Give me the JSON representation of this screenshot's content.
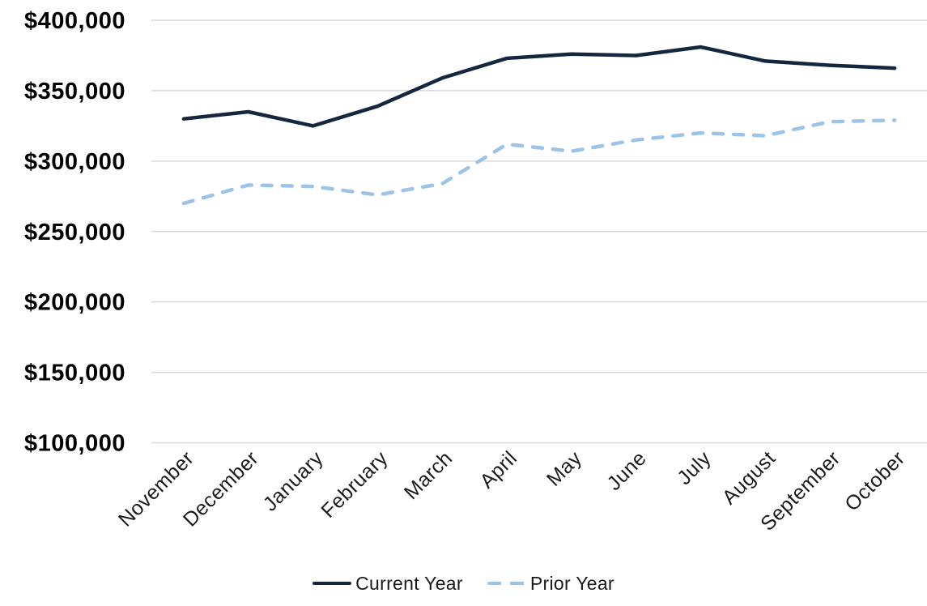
{
  "chart_data": {
    "type": "line",
    "title": "",
    "xlabel": "",
    "ylabel": "",
    "categories": [
      "November",
      "December",
      "January",
      "February",
      "March",
      "April",
      "May",
      "June",
      "July",
      "August",
      "September",
      "October"
    ],
    "series": [
      {
        "name": "Current Year",
        "color": "#14273f",
        "line_style": "solid",
        "values": [
          330000,
          335000,
          325000,
          339000,
          359000,
          373000,
          376000,
          375000,
          381000,
          371000,
          368000,
          366000
        ]
      },
      {
        "name": "Prior Year",
        "color": "#9dc3e6",
        "line_style": "dashed",
        "values": [
          270000,
          283000,
          282000,
          276000,
          284000,
          312000,
          307000,
          315000,
          320000,
          318000,
          328000,
          329000
        ]
      }
    ],
    "ylim": [
      100000,
      400000
    ],
    "ytick_step": 50000,
    "ytick_labels": [
      "$400,000",
      "$350,000",
      "$300,000",
      "$250,000",
      "$200,000",
      "$150,000",
      "$100,000"
    ],
    "grid": "horizontal",
    "gridline_color": "#d9d9d9",
    "legend_position": "bottom",
    "x_label_rotation_deg": 45
  }
}
